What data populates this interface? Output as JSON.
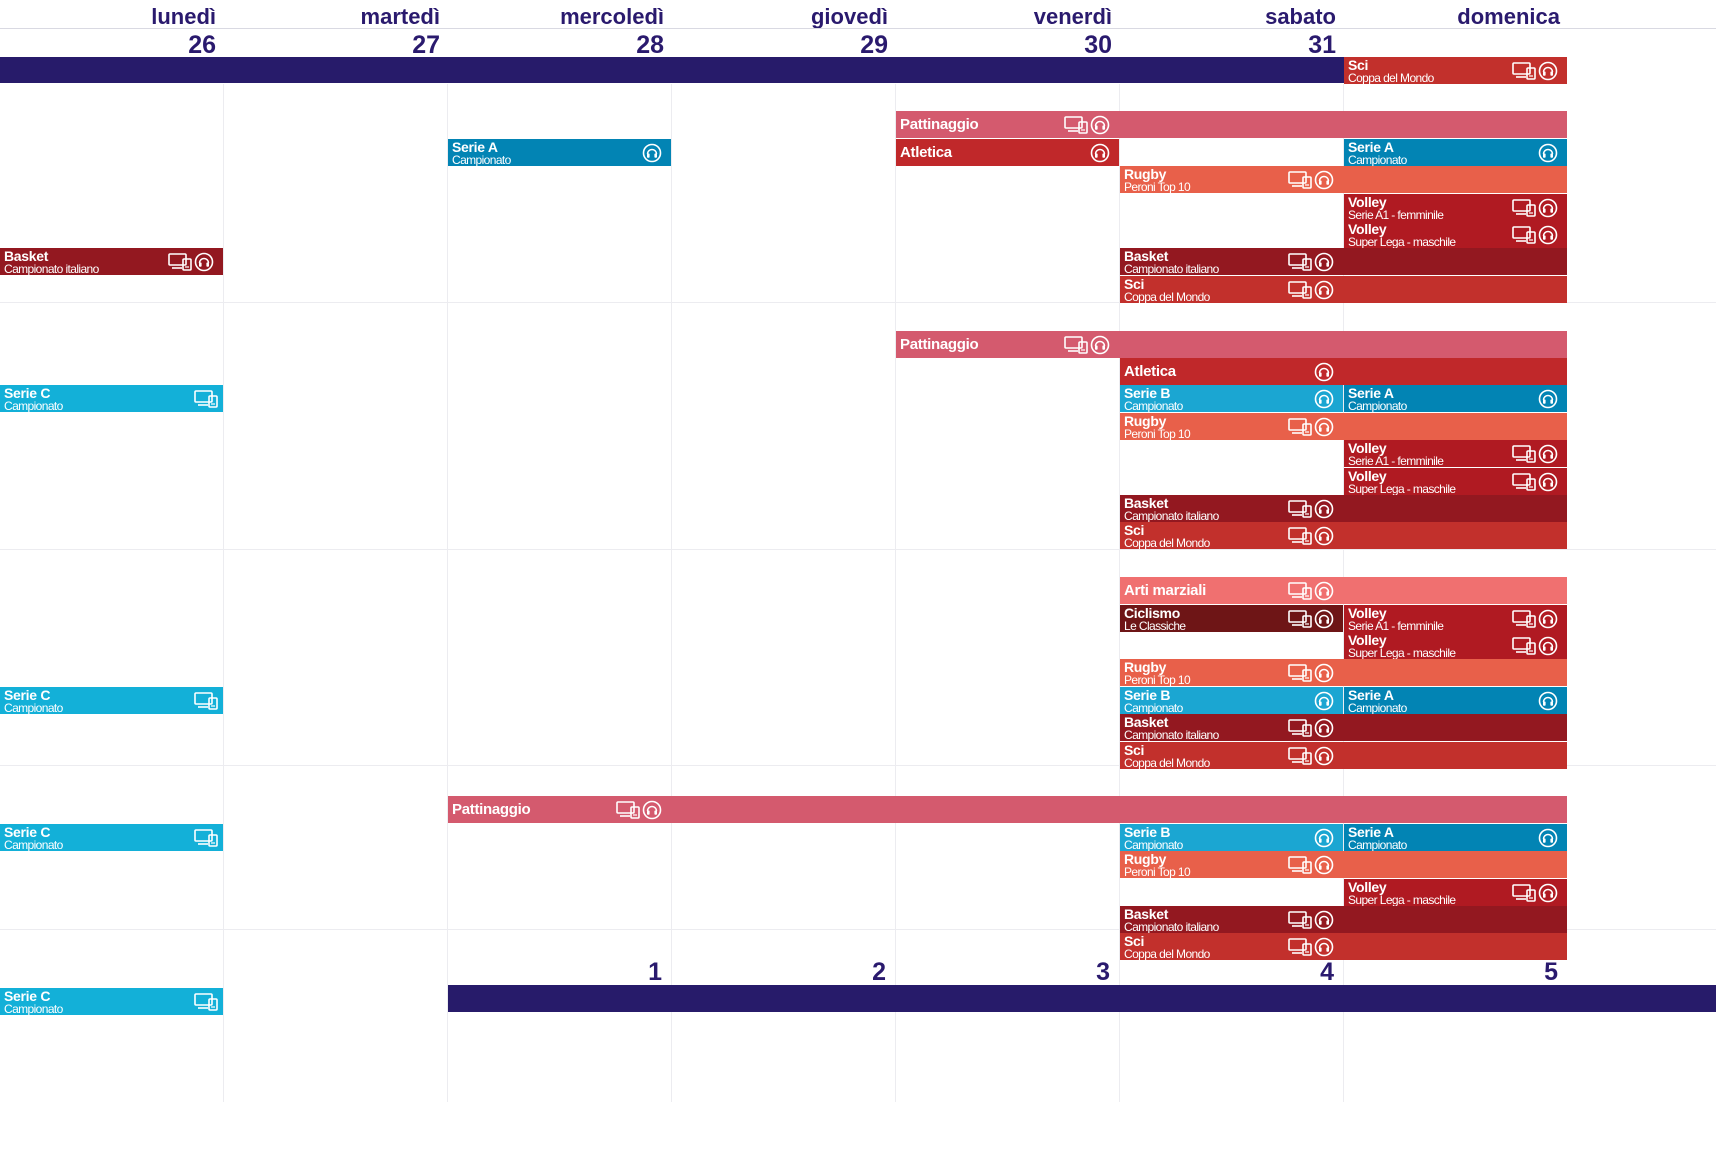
{
  "days": [
    "lunedì",
    "martedì",
    "mercoledì",
    "giovedì",
    "venerdì",
    "sabato",
    "domenica"
  ],
  "top_dates": [
    "26",
    "27",
    "28",
    "29",
    "30",
    "31"
  ],
  "bottom_dates": [
    "1",
    "2",
    "3",
    "4",
    "5"
  ],
  "icon_legend": {
    "tv": "tv-icon",
    "audio": "headset-icon"
  },
  "colors": {
    "navy": "#271b6a",
    "Pattinaggio": "#d45a6e",
    "Arti marziali": "#f07070",
    "Rugby": "#e8604a",
    "Atletica": "#c0282a",
    "Sci": "#c2302c",
    "Basket": "#931820",
    "Volley": "#b01a22",
    "Ciclismo": "#6e1516",
    "Serie A": "#0284b4",
    "Serie B": "#1ba6d2",
    "Serie C": "#13b0d8"
  },
  "events": [
    {
      "title": "Sci",
      "subtitle": "Coppa del Mondo",
      "icons": [
        "tv",
        "audio"
      ],
      "day": 6,
      "span": 1,
      "row": "hdr"
    },
    {
      "title": "Pattinaggio",
      "subtitle": "",
      "icons": [
        "tv",
        "audio"
      ],
      "day": 4,
      "span": 3,
      "row": 1
    },
    {
      "title": "Serie A",
      "subtitle": "Campionato",
      "icons": [
        "audio"
      ],
      "day": 2,
      "span": 1,
      "row": 2
    },
    {
      "title": "Atletica",
      "subtitle": "",
      "icons": [
        "audio"
      ],
      "day": 4,
      "span": 1,
      "row": 2
    },
    {
      "title": "Serie A",
      "subtitle": "Campionato",
      "icons": [
        "audio"
      ],
      "day": 6,
      "span": 1,
      "row": 2
    },
    {
      "title": "Rugby",
      "subtitle": "Peroni Top 10",
      "icons": [
        "tv",
        "audio"
      ],
      "day": 5,
      "span": 2,
      "row": 3
    },
    {
      "title": "Volley",
      "subtitle": "Serie A1 - femminile",
      "icons": [
        "tv",
        "audio"
      ],
      "day": 6,
      "span": 1,
      "row": 4
    },
    {
      "title": "Volley",
      "subtitle": "Super Lega - maschile",
      "icons": [
        "tv",
        "audio"
      ],
      "day": 6,
      "span": 1,
      "row": 5
    },
    {
      "title": "Basket",
      "subtitle": "Campionato italiano",
      "icons": [
        "tv",
        "audio"
      ],
      "day": 0,
      "span": 1,
      "row": 6
    },
    {
      "title": "Basket",
      "subtitle": "Campionato italiano",
      "icons": [
        "tv",
        "audio"
      ],
      "day": 5,
      "span": 2,
      "row": 6
    },
    {
      "title": "Sci",
      "subtitle": "Coppa del Mondo",
      "icons": [
        "tv",
        "audio"
      ],
      "day": 5,
      "span": 2,
      "row": 7
    },
    {
      "title": "Pattinaggio",
      "subtitle": "",
      "icons": [
        "tv",
        "audio"
      ],
      "day": 4,
      "span": 3,
      "row": 9
    },
    {
      "title": "Atletica",
      "subtitle": "",
      "icons": [
        "audio"
      ],
      "day": 5,
      "span": 2,
      "row": 10
    },
    {
      "title": "Serie C",
      "subtitle": "Campionato",
      "icons": [
        "tv"
      ],
      "day": 0,
      "span": 1,
      "row": 11
    },
    {
      "title": "Serie B",
      "subtitle": "Campionato",
      "icons": [
        "audio"
      ],
      "day": 5,
      "span": 1,
      "row": 11
    },
    {
      "title": "Serie A",
      "subtitle": "Campionato",
      "icons": [
        "audio"
      ],
      "day": 6,
      "span": 1,
      "row": 11
    },
    {
      "title": "Rugby",
      "subtitle": "Peroni Top 10",
      "icons": [
        "tv",
        "audio"
      ],
      "day": 5,
      "span": 2,
      "row": 12
    },
    {
      "title": "Volley",
      "subtitle": "Serie A1 - femminile",
      "icons": [
        "tv",
        "audio"
      ],
      "day": 6,
      "span": 1,
      "row": 13
    },
    {
      "title": "Volley",
      "subtitle": "Super Lega - maschile",
      "icons": [
        "tv",
        "audio"
      ],
      "day": 6,
      "span": 1,
      "row": 14
    },
    {
      "title": "Basket",
      "subtitle": "Campionato italiano",
      "icons": [
        "tv",
        "audio"
      ],
      "day": 5,
      "span": 2,
      "row": 15
    },
    {
      "title": "Sci",
      "subtitle": "Coppa del Mondo",
      "icons": [
        "tv",
        "audio"
      ],
      "day": 5,
      "span": 2,
      "row": 16
    },
    {
      "title": "Arti marziali",
      "subtitle": "",
      "icons": [
        "tv",
        "audio"
      ],
      "day": 5,
      "span": 2,
      "row": 18
    },
    {
      "title": "Ciclismo",
      "subtitle": "Le Classiche",
      "icons": [
        "tv",
        "audio"
      ],
      "day": 5,
      "span": 1,
      "row": 19
    },
    {
      "title": "Volley",
      "subtitle": "Serie A1 - femminile",
      "icons": [
        "tv",
        "audio"
      ],
      "day": 6,
      "span": 1,
      "row": 19
    },
    {
      "title": "Volley",
      "subtitle": "Super Lega - maschile",
      "icons": [
        "tv",
        "audio"
      ],
      "day": 6,
      "span": 1,
      "row": 20
    },
    {
      "title": "Rugby",
      "subtitle": "Peroni Top 10",
      "icons": [
        "tv",
        "audio"
      ],
      "day": 5,
      "span": 2,
      "row": 21
    },
    {
      "title": "Serie C",
      "subtitle": "Campionato",
      "icons": [
        "tv"
      ],
      "day": 0,
      "span": 1,
      "row": 22
    },
    {
      "title": "Serie B",
      "subtitle": "Campionato",
      "icons": [
        "audio"
      ],
      "day": 5,
      "span": 1,
      "row": 22
    },
    {
      "title": "Serie A",
      "subtitle": "Campionato",
      "icons": [
        "audio"
      ],
      "day": 6,
      "span": 1,
      "row": 22
    },
    {
      "title": "Basket",
      "subtitle": "Campionato italiano",
      "icons": [
        "tv",
        "audio"
      ],
      "day": 5,
      "span": 2,
      "row": 23
    },
    {
      "title": "Sci",
      "subtitle": "Coppa del Mondo",
      "icons": [
        "tv",
        "audio"
      ],
      "day": 5,
      "span": 2,
      "row": 24
    },
    {
      "title": "Pattinaggio",
      "subtitle": "",
      "icons": [
        "tv",
        "audio"
      ],
      "day": 2,
      "span": 5,
      "row": 26
    },
    {
      "title": "Serie C",
      "subtitle": "Campionato",
      "icons": [
        "tv"
      ],
      "day": 0,
      "span": 1,
      "row": 27
    },
    {
      "title": "Serie B",
      "subtitle": "Campionato",
      "icons": [
        "audio"
      ],
      "day": 5,
      "span": 1,
      "row": 27
    },
    {
      "title": "Serie A",
      "subtitle": "Campionato",
      "icons": [
        "audio"
      ],
      "day": 6,
      "span": 1,
      "row": 27
    },
    {
      "title": "Rugby",
      "subtitle": "Peroni Top 10",
      "icons": [
        "tv",
        "audio"
      ],
      "day": 5,
      "span": 2,
      "row": 28
    },
    {
      "title": "Volley",
      "subtitle": "Super Lega - maschile",
      "icons": [
        "tv",
        "audio"
      ],
      "day": 6,
      "span": 1,
      "row": 29
    },
    {
      "title": "Basket",
      "subtitle": "Campionato italiano",
      "icons": [
        "tv",
        "audio"
      ],
      "day": 5,
      "span": 2,
      "row": 30
    },
    {
      "title": "Sci",
      "subtitle": "Coppa del Mondo",
      "icons": [
        "tv",
        "audio"
      ],
      "day": 5,
      "span": 2,
      "row": 31
    },
    {
      "title": "Serie C",
      "subtitle": "Campionato",
      "icons": [
        "tv"
      ],
      "day": 0,
      "span": 1,
      "row": 33
    }
  ]
}
